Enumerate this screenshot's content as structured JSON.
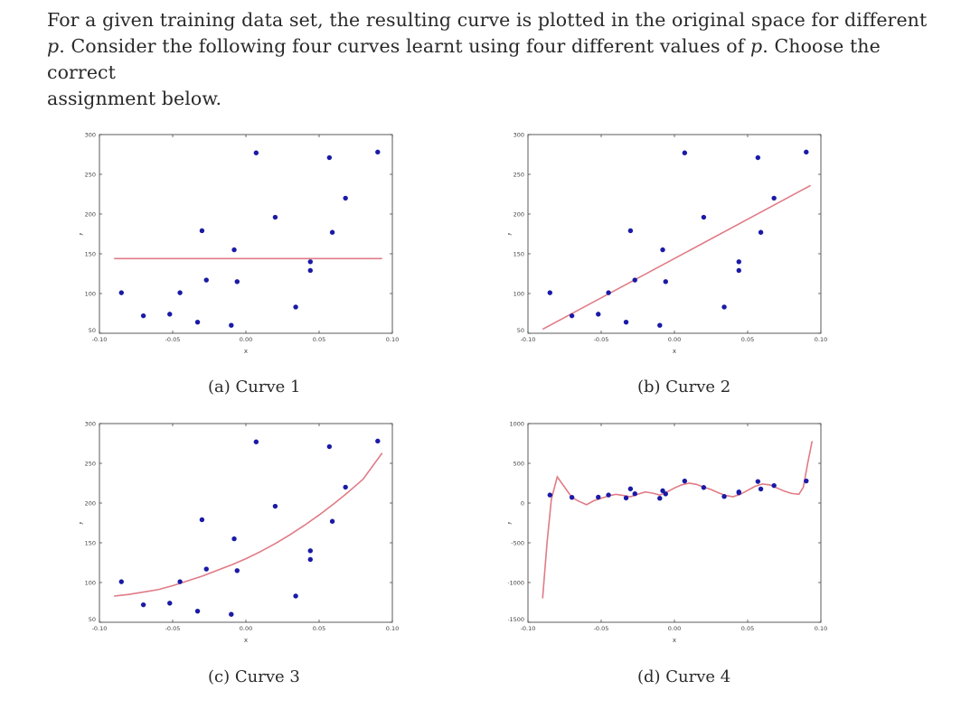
{
  "question": {
    "line1": "For a given training data set, the resulting curve is plotted in the original space for different",
    "line2_var": "p",
    "line2_rest": ". Consider the following four curves learnt using four different values of ",
    "line2_var2": "p",
    "line2_end": ". Choose the correct",
    "line3": "assignment below."
  },
  "colors": {
    "points": "#1a1aa6",
    "curve": "#e07b86",
    "axes": "#333333"
  },
  "points": {
    "x": [
      -0.085,
      -0.07,
      -0.052,
      -0.045,
      -0.033,
      -0.03,
      -0.027,
      -0.01,
      -0.008,
      -0.006,
      0.007,
      0.02,
      0.034,
      0.044,
      0.044,
      0.057,
      0.059,
      0.068,
      0.09
    ],
    "y": [
      101,
      72,
      74,
      101,
      64,
      179,
      117,
      60,
      155,
      115,
      277,
      196,
      83,
      140,
      129,
      271,
      177,
      220,
      278
    ]
  },
  "chart_data": [
    {
      "type": "scatter",
      "caption": "(a) Curve 1",
      "xlabel": "x",
      "ylabel": "y",
      "xlim": [
        -0.1,
        0.1
      ],
      "ylim": [
        50,
        300
      ],
      "xticks": [
        "-0.10",
        "-0.05",
        "0.00",
        "0.05",
        "0.10"
      ],
      "yticks": [
        "50",
        "100",
        "150",
        "200",
        "250",
        "300"
      ],
      "curve": {
        "x": [
          -0.09,
          0.093
        ],
        "y": [
          144,
          144
        ]
      }
    },
    {
      "type": "scatter",
      "caption": "(b) Curve 2",
      "xlabel": "x",
      "ylabel": "y",
      "xlim": [
        -0.1,
        0.1
      ],
      "ylim": [
        50,
        300
      ],
      "xticks": [
        "-0.10",
        "-0.05",
        "0.00",
        "0.05",
        "0.10"
      ],
      "yticks": [
        "50",
        "100",
        "150",
        "200",
        "250",
        "300"
      ],
      "curve": {
        "x": [
          -0.09,
          0.093
        ],
        "y": [
          55,
          236
        ]
      }
    },
    {
      "type": "scatter",
      "caption": "(c) Curve 3",
      "xlabel": "x",
      "ylabel": "y",
      "xlim": [
        -0.1,
        0.1
      ],
      "ylim": [
        50,
        300
      ],
      "xticks": [
        "-0.10",
        "-0.05",
        "0.00",
        "0.05",
        "0.10"
      ],
      "yticks": [
        "50",
        "100",
        "150",
        "200",
        "250",
        "300"
      ],
      "curve": {
        "x": [
          -0.09,
          -0.08,
          -0.07,
          -0.06,
          -0.05,
          -0.04,
          -0.03,
          -0.02,
          -0.01,
          0.0,
          0.01,
          0.02,
          0.03,
          0.04,
          0.05,
          0.06,
          0.07,
          0.08,
          0.093
        ],
        "y": [
          83,
          85,
          88,
          91,
          96,
          102,
          108,
          115,
          122,
          130,
          139,
          149,
          160,
          172,
          185,
          199,
          214,
          230,
          263
        ]
      }
    },
    {
      "type": "scatter",
      "caption": "(d) Curve 4",
      "xlabel": "x",
      "ylabel": "y",
      "xlim": [
        -0.1,
        0.1
      ],
      "ylim": [
        -1500,
        1000
      ],
      "xticks": [
        "-0.10",
        "-0.05",
        "0.00",
        "0.05",
        "0.10"
      ],
      "yticks": [
        "-1500",
        "-1000",
        "-500",
        "0",
        "500",
        "1000"
      ],
      "curve": {
        "x": [
          -0.09,
          -0.087,
          -0.084,
          -0.08,
          -0.075,
          -0.07,
          -0.065,
          -0.06,
          -0.055,
          -0.05,
          -0.045,
          -0.04,
          -0.035,
          -0.03,
          -0.025,
          -0.02,
          -0.015,
          -0.01,
          -0.005,
          0.0,
          0.005,
          0.01,
          0.015,
          0.02,
          0.025,
          0.03,
          0.035,
          0.04,
          0.045,
          0.05,
          0.055,
          0.06,
          0.065,
          0.07,
          0.075,
          0.08,
          0.085,
          0.088,
          0.091,
          0.094
        ],
        "y": [
          -1200,
          -500,
          50,
          330,
          200,
          70,
          20,
          -20,
          30,
          60,
          90,
          110,
          95,
          80,
          110,
          140,
          125,
          100,
          140,
          190,
          230,
          250,
          235,
          200,
          170,
          130,
          95,
          80,
          110,
          160,
          210,
          240,
          230,
          190,
          150,
          120,
          110,
          200,
          500,
          780
        ]
      }
    }
  ]
}
